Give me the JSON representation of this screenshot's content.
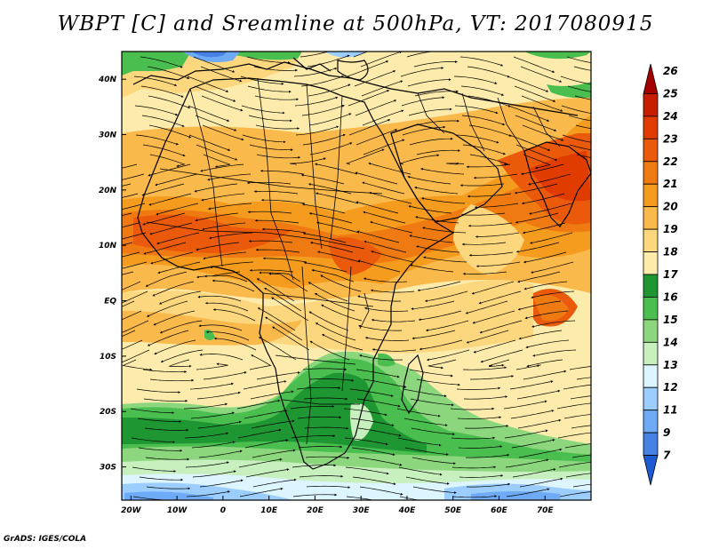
{
  "title": "WBPT [C] and Sreamline at 500hPa, VT: 2017080915",
  "credit": "GrADS: IGES/COLA",
  "map": {
    "lon_range": [
      -22,
      80
    ],
    "lat_range": [
      -36,
      45
    ],
    "x_ticks": [
      {
        "value": -20,
        "label": "20W"
      },
      {
        "value": -10,
        "label": "10W"
      },
      {
        "value": 0,
        "label": "0"
      },
      {
        "value": 10,
        "label": "10E"
      },
      {
        "value": 20,
        "label": "20E"
      },
      {
        "value": 30,
        "label": "30E"
      },
      {
        "value": 40,
        "label": "40E"
      },
      {
        "value": 50,
        "label": "50E"
      },
      {
        "value": 60,
        "label": "60E"
      },
      {
        "value": 70,
        "label": "70E"
      }
    ],
    "y_ticks": [
      {
        "value": 40,
        "label": "40N"
      },
      {
        "value": 30,
        "label": "30N"
      },
      {
        "value": 20,
        "label": "20N"
      },
      {
        "value": 10,
        "label": "10N"
      },
      {
        "value": 0,
        "label": "EQ"
      },
      {
        "value": -10,
        "label": "10S"
      },
      {
        "value": -20,
        "label": "20S"
      },
      {
        "value": -30,
        "label": "30S"
      }
    ]
  },
  "colorbar": {
    "levels": [
      "26",
      "25",
      "24",
      "23",
      "22",
      "21",
      "20",
      "19",
      "18",
      "17",
      "16",
      "15",
      "14",
      "13",
      "12",
      "11",
      "9",
      "7"
    ],
    "colors": [
      "#a50000",
      "#c81e00",
      "#e13c00",
      "#eb5a0a",
      "#f07a12",
      "#f59b1e",
      "#fab94b",
      "#fcd77d",
      "#fcebaa",
      "#1e9632",
      "#4bbe50",
      "#8cd77d",
      "#c8f0be",
      "#dcf5ff",
      "#9bcdff",
      "#6eaaf5",
      "#4682e6",
      "#1e5ad2"
    ]
  }
}
